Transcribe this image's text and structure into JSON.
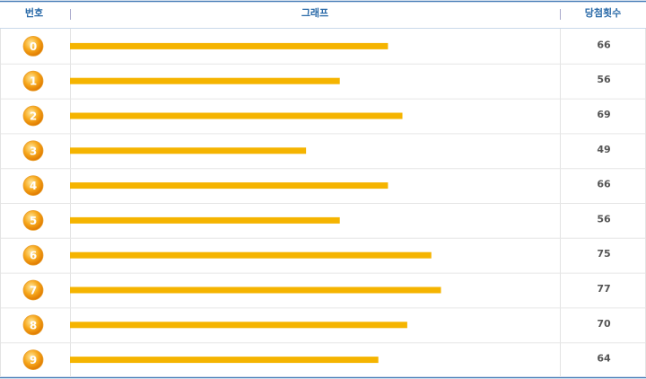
{
  "chart_data": {
    "type": "bar",
    "headers": [
      "번호",
      "그래프",
      "당첨횟수"
    ],
    "categories": [
      "0",
      "1",
      "2",
      "3",
      "4",
      "5",
      "6",
      "7",
      "8",
      "9"
    ],
    "values": [
      66,
      56,
      69,
      49,
      66,
      56,
      75,
      77,
      70,
      64
    ],
    "color": "#f5b400"
  }
}
